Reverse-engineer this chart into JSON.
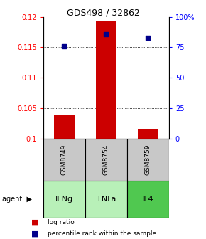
{
  "title": "GDS498 / 32862",
  "samples": [
    "GSM8749",
    "GSM8754",
    "GSM8759"
  ],
  "agents": [
    "IFNg",
    "TNFa",
    "IL4"
  ],
  "bar_values": [
    0.1038,
    0.1192,
    0.1015
  ],
  "baseline": 0.1,
  "percentile_values": [
    76.0,
    86.0,
    83.0
  ],
  "ylim_left": [
    0.1,
    0.12
  ],
  "yticks_left": [
    0.1,
    0.105,
    0.11,
    0.115,
    0.12
  ],
  "yticks_right": [
    0,
    25,
    50,
    75,
    100
  ],
  "ylim_right": [
    0,
    100
  ],
  "bar_color": "#cc0000",
  "percentile_color": "#00008b",
  "grid_color": "#555555",
  "sample_box_color": "#c8c8c8",
  "agent_box_colors": [
    "#b8f0b8",
    "#b8f0b8",
    "#50c850"
  ],
  "legend_bar_label": "log ratio",
  "legend_pct_label": "percentile rank within the sample",
  "agent_label": "agent"
}
